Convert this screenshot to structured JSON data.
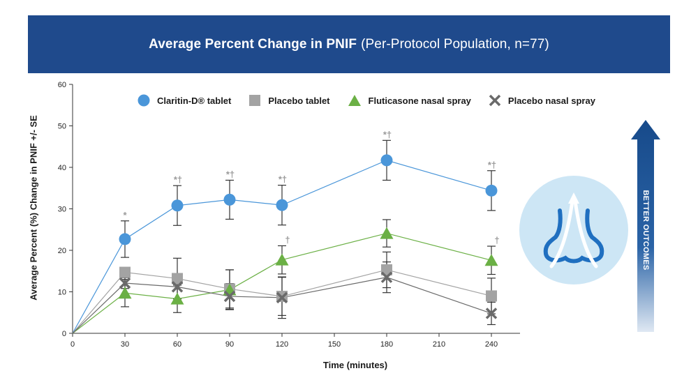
{
  "header": {
    "title_bold": "Average Percent Change in PNIF",
    "title_light": "(Per-Protocol Population, n=77)"
  },
  "chart_data": {
    "type": "line",
    "title": "Average Percent Change in PNIF (Per-Protocol Population, n=77)",
    "xlabel": "Time (minutes)",
    "ylabel": "Average Percent (%) Change in PNIF +/- SE",
    "xlim": [
      0,
      240
    ],
    "ylim": [
      0,
      60
    ],
    "xticks": [
      0,
      30,
      60,
      90,
      120,
      150,
      180,
      210,
      240
    ],
    "yticks": [
      0,
      10,
      20,
      30,
      40,
      50,
      60
    ],
    "legend_position": "top",
    "series": [
      {
        "name": "Claritin-D® tablet",
        "marker": "circle",
        "color": "#4a96d9",
        "x": [
          0,
          30,
          60,
          90,
          120,
          180,
          240
        ],
        "y": [
          0,
          22.7,
          30.8,
          32.2,
          30.9,
          41.7,
          34.4
        ],
        "err": [
          0,
          4.4,
          4.8,
          4.7,
          4.8,
          4.8,
          4.8
        ]
      },
      {
        "name": "Placebo tablet",
        "marker": "square",
        "color": "#a3a3a3",
        "x": [
          0,
          30,
          60,
          90,
          120,
          180,
          240
        ],
        "y": [
          0,
          14.7,
          13.2,
          10.7,
          8.9,
          15.3,
          9.0
        ],
        "err": [
          0,
          0,
          4.9,
          4.6,
          4.6,
          4.3,
          4.3
        ]
      },
      {
        "name": "Fluticasone nasal spray",
        "marker": "triangle",
        "color": "#6bb045",
        "x": [
          0,
          30,
          60,
          90,
          120,
          180,
          240
        ],
        "y": [
          0,
          9.7,
          8.3,
          10.5,
          17.7,
          24.1,
          17.6
        ],
        "err": [
          0,
          3.3,
          3.3,
          4.8,
          3.4,
          3.3,
          3.4
        ]
      },
      {
        "name": "Placebo nasal spray",
        "marker": "x",
        "color": "#6a6a6a",
        "x": [
          0,
          30,
          60,
          90,
          120,
          180,
          240
        ],
        "y": [
          0,
          12.1,
          11.2,
          8.9,
          8.6,
          13.5,
          4.8
        ],
        "err": [
          0,
          1.3,
          0,
          3.1,
          5.0,
          3.7,
          2.7
        ]
      }
    ],
    "annotations": [
      {
        "x": 30,
        "series": "Claritin-D® tablet",
        "text": "*"
      },
      {
        "x": 60,
        "series": "Claritin-D® tablet",
        "text": "*†"
      },
      {
        "x": 90,
        "series": "Claritin-D® tablet",
        "text": "*†"
      },
      {
        "x": 120,
        "series": "Claritin-D® tablet",
        "text": "*†"
      },
      {
        "x": 180,
        "series": "Claritin-D® tablet",
        "text": "*†"
      },
      {
        "x": 240,
        "series": "Claritin-D® tablet",
        "text": "*†"
      },
      {
        "x": 120,
        "series": "Fluticasone nasal spray",
        "text": "†"
      },
      {
        "x": 240,
        "series": "Fluticasone nasal spray",
        "text": "†"
      }
    ]
  },
  "side_panel": {
    "label": "BETTER OUTCOMES",
    "arrow_color": "#174a8a",
    "icon": "nose-airflow-icon"
  }
}
